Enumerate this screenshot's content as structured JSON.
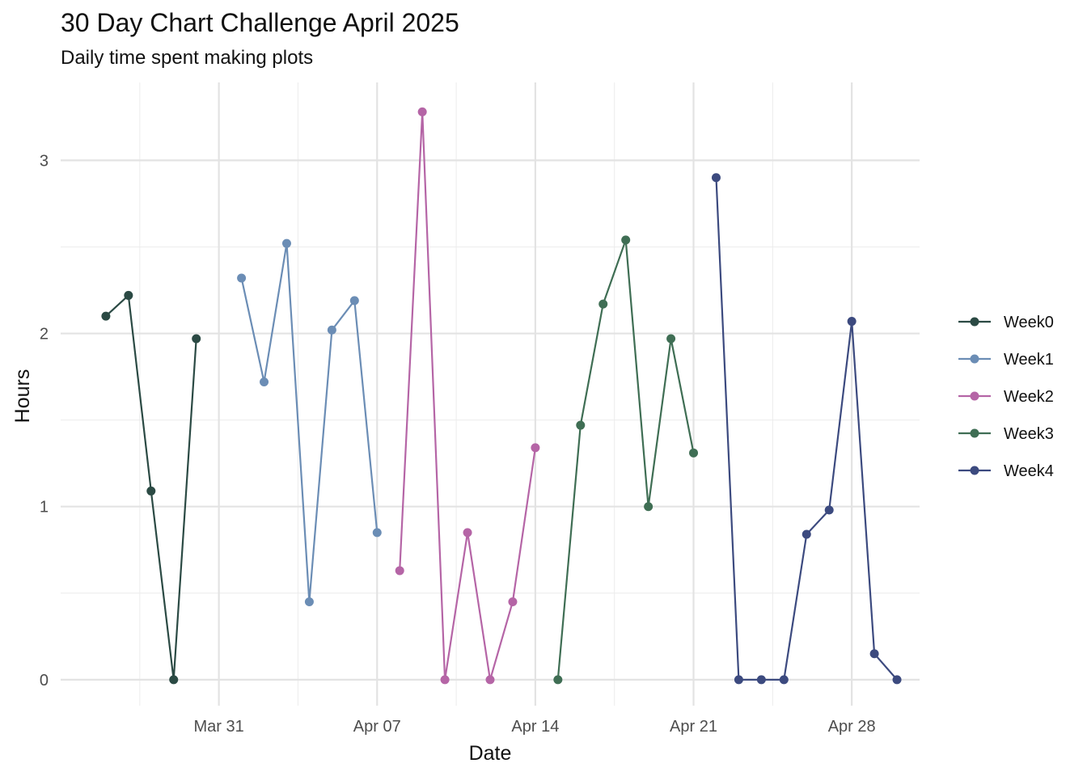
{
  "chart_data": {
    "type": "line",
    "title": "30 Day Chart Challenge April 2025",
    "subtitle": "Daily time spent making plots",
    "xlabel": "Date",
    "ylabel": "Hours",
    "x_ticks": [
      {
        "date": "2025-03-31",
        "label": "Mar 31"
      },
      {
        "date": "2025-04-07",
        "label": "Apr 07"
      },
      {
        "date": "2025-04-14",
        "label": "Apr 14"
      },
      {
        "date": "2025-04-21",
        "label": "Apr 21"
      },
      {
        "date": "2025-04-28",
        "label": "Apr 28"
      }
    ],
    "y_ticks": [
      0,
      1,
      2,
      3
    ],
    "xlim": [
      "2025-03-24",
      "2025-05-01"
    ],
    "ylim": [
      -0.15,
      3.45
    ],
    "grid": true,
    "legend_position": "right",
    "series": [
      {
        "name": "Week0",
        "color": "#2b4a44",
        "points": [
          {
            "x": "2025-03-26",
            "y": 2.1
          },
          {
            "x": "2025-03-27",
            "y": 2.22
          },
          {
            "x": "2025-03-28",
            "y": 1.09
          },
          {
            "x": "2025-03-29",
            "y": 0.0
          },
          {
            "x": "2025-03-30",
            "y": 1.97
          }
        ]
      },
      {
        "name": "Week1",
        "color": "#6b8db5",
        "points": [
          {
            "x": "2025-04-01",
            "y": 2.32
          },
          {
            "x": "2025-04-02",
            "y": 1.72
          },
          {
            "x": "2025-04-03",
            "y": 2.52
          },
          {
            "x": "2025-04-04",
            "y": 0.45
          },
          {
            "x": "2025-04-05",
            "y": 2.02
          },
          {
            "x": "2025-04-06",
            "y": 2.19
          },
          {
            "x": "2025-04-07",
            "y": 0.85
          }
        ]
      },
      {
        "name": "Week2",
        "color": "#b565a6",
        "points": [
          {
            "x": "2025-04-08",
            "y": 0.63
          },
          {
            "x": "2025-04-09",
            "y": 3.28
          },
          {
            "x": "2025-04-10",
            "y": 0.0
          },
          {
            "x": "2025-04-11",
            "y": 0.85
          },
          {
            "x": "2025-04-12",
            "y": 0.0
          },
          {
            "x": "2025-04-13",
            "y": 0.45
          },
          {
            "x": "2025-04-14",
            "y": 1.34
          }
        ]
      },
      {
        "name": "Week3",
        "color": "#3f6e54",
        "points": [
          {
            "x": "2025-04-15",
            "y": 0.0
          },
          {
            "x": "2025-04-16",
            "y": 1.47
          },
          {
            "x": "2025-04-17",
            "y": 2.17
          },
          {
            "x": "2025-04-18",
            "y": 2.54
          },
          {
            "x": "2025-04-19",
            "y": 1.0
          },
          {
            "x": "2025-04-20",
            "y": 1.97
          },
          {
            "x": "2025-04-21",
            "y": 1.31
          }
        ]
      },
      {
        "name": "Week4",
        "color": "#3c4a7f",
        "points": [
          {
            "x": "2025-04-22",
            "y": 2.9
          },
          {
            "x": "2025-04-23",
            "y": 0.0
          },
          {
            "x": "2025-04-24",
            "y": 0.0
          },
          {
            "x": "2025-04-25",
            "y": 0.0
          },
          {
            "x": "2025-04-26",
            "y": 0.84
          },
          {
            "x": "2025-04-27",
            "y": 0.98
          },
          {
            "x": "2025-04-28",
            "y": 2.07
          },
          {
            "x": "2025-04-29",
            "y": 0.15
          },
          {
            "x": "2025-04-30",
            "y": 0.0
          }
        ]
      }
    ]
  }
}
